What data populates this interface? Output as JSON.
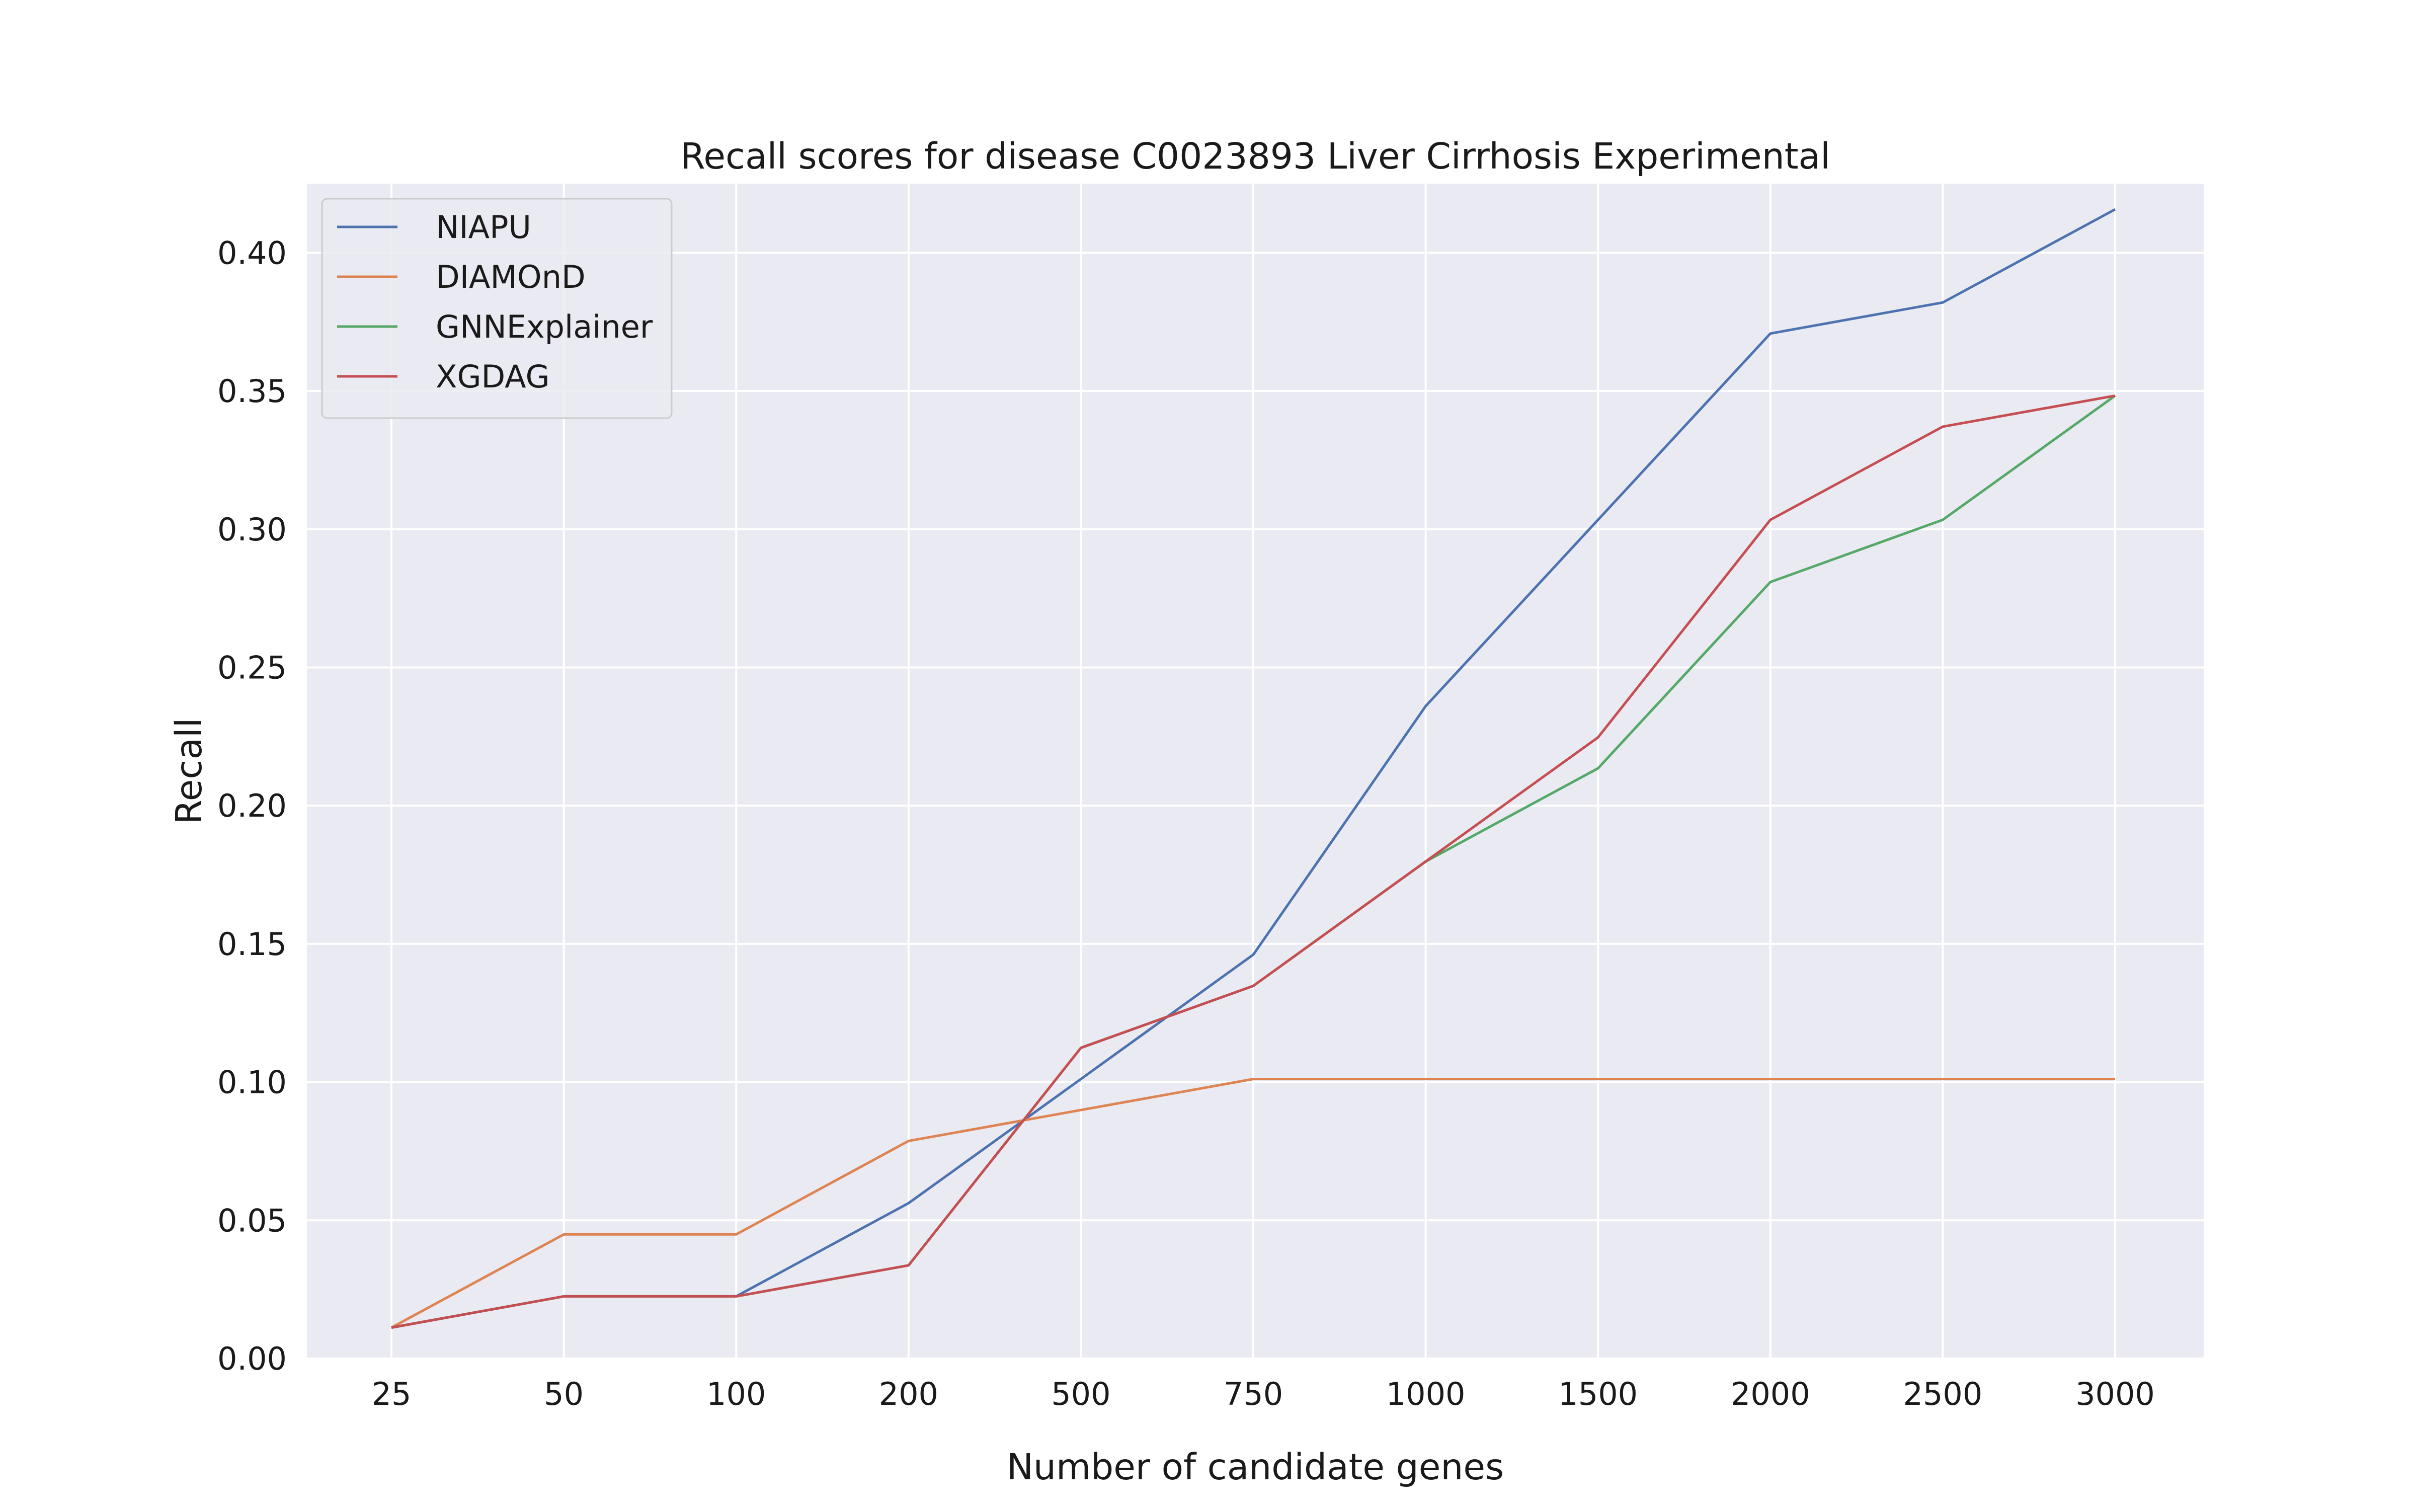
{
  "chart_data": {
    "type": "line",
    "title": "Recall scores for disease C0023893 Liver Cirrhosis Experimental",
    "xlabel": "Number of candidate genes",
    "ylabel": "Recall",
    "categories": [
      "25",
      "50",
      "100",
      "200",
      "500",
      "750",
      "1000",
      "1500",
      "2000",
      "2500",
      "3000"
    ],
    "ylim": [
      0,
      0.425
    ],
    "yticks": [
      "0.00",
      "0.05",
      "0.10",
      "0.15",
      "0.20",
      "0.25",
      "0.30",
      "0.35",
      "0.40"
    ],
    "grid": true,
    "legend_position": "top-left",
    "series": [
      {
        "name": "NIAPU",
        "color": "#4c72b0",
        "values": [
          0.0112,
          0.0225,
          0.0225,
          0.0562,
          0.1011,
          0.1461,
          0.236,
          0.3034,
          0.3708,
          0.382,
          0.4157
        ]
      },
      {
        "name": "DIAMOnD",
        "color": "#dd8452",
        "values": [
          0.0112,
          0.0449,
          0.0449,
          0.0787,
          0.0899,
          0.1011,
          0.1011,
          0.1011,
          0.1011,
          0.1011,
          0.1011
        ]
      },
      {
        "name": "GNNExplainer",
        "color": "#55a868",
        "values": [
          0.0112,
          0.0225,
          0.0225,
          0.0337,
          0.1124,
          0.1348,
          0.1798,
          0.2135,
          0.2809,
          0.3034,
          0.3483
        ]
      },
      {
        "name": "XGDAG",
        "color": "#c44e52",
        "values": [
          0.0112,
          0.0225,
          0.0225,
          0.0337,
          0.1124,
          0.1348,
          0.1798,
          0.2247,
          0.3034,
          0.3371,
          0.3483
        ]
      }
    ]
  }
}
